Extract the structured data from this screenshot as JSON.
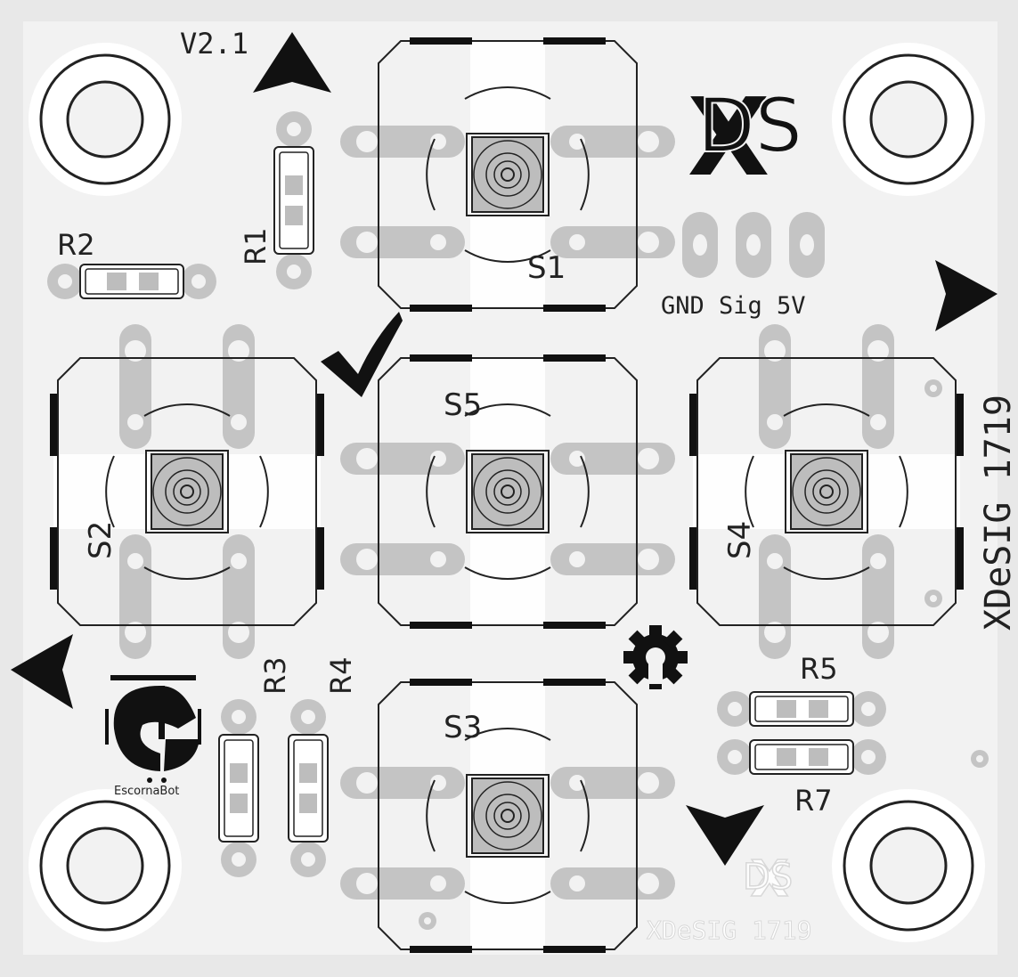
{
  "board": {
    "version": "V2.1",
    "brand_vertical": "XDeSIG 1719",
    "brand_faded": "XDeSIG 1719",
    "logo_letters": "DS",
    "logo_cross": "X",
    "connector_label": "GND Sig 5V",
    "escornabot_label": "EscornaBot"
  },
  "switches": [
    {
      "ref": "S1"
    },
    {
      "ref": "S2"
    },
    {
      "ref": "S3"
    },
    {
      "ref": "S4"
    },
    {
      "ref": "S5"
    }
  ],
  "resistors": [
    {
      "ref": "R1"
    },
    {
      "ref": "R2"
    },
    {
      "ref": "R3"
    },
    {
      "ref": "R4"
    },
    {
      "ref": "R5"
    },
    {
      "ref": "R7"
    }
  ],
  "icons": [
    "arrow-up-icon",
    "arrow-right-icon",
    "arrow-down-icon",
    "arrow-left-icon",
    "checkmark-icon",
    "gear-icon",
    "escornabot-logo-icon",
    "xdesig-logo-icon"
  ],
  "colors": {
    "board": "#f2f2f2",
    "background": "#e8e8e8",
    "pad": "#c4c4c4",
    "silkscreen": "#1a1a1a",
    "keepout": "#ffffff"
  }
}
